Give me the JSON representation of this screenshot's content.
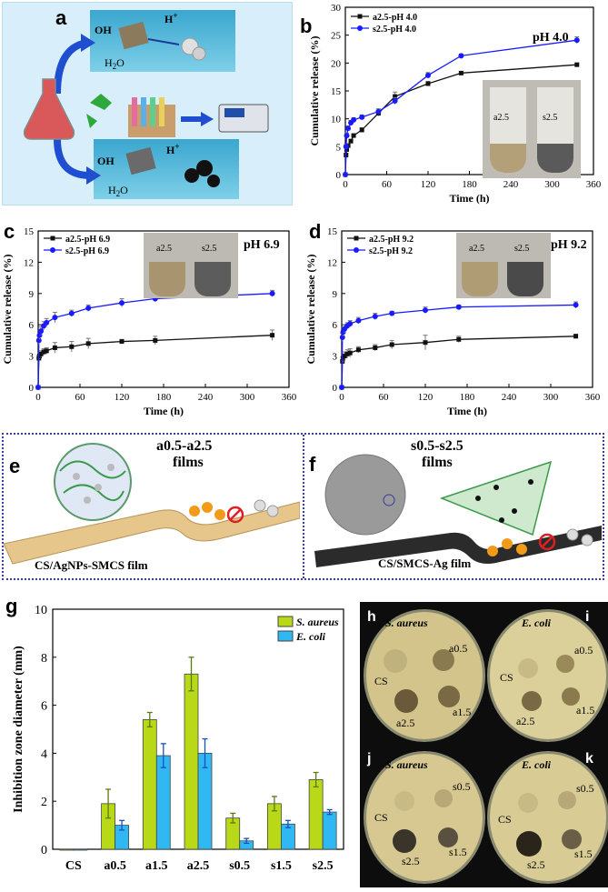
{
  "panels": {
    "a": {
      "label": "a",
      "texts": {
        "oh1": "OH",
        "h1": "H",
        "plus1": "+",
        "h2o1": "H",
        "sub1": "2",
        "o1": "O",
        "oh2": "OH",
        "h2": "H",
        "plus2": "+",
        "h2o2": "H",
        "sub2": "2",
        "o2": "O"
      }
    },
    "b": {
      "label": "b",
      "pH": "pH 4.0",
      "inset": [
        "a2.5",
        "s2.5"
      ]
    },
    "c": {
      "label": "c",
      "pH": "pH 6.9",
      "inset": [
        "a2.5",
        "s2.5"
      ]
    },
    "d": {
      "label": "d",
      "pH": "pH 9.2",
      "inset": [
        "a2.5",
        "s2.5"
      ]
    },
    "e": {
      "label": "e",
      "title_line1": "a0.5-a2.5",
      "title_line2": "films",
      "film": "CS/AgNPs-SMCS film"
    },
    "f": {
      "label": "f",
      "title_line1": "s0.5-s2.5",
      "title_line2": "films",
      "film": "CS/SMCS-Ag film"
    },
    "g": {
      "label": "g"
    },
    "h": {
      "label": "h",
      "organism": "S. aureus",
      "spots": [
        "CS",
        "a0.5",
        "a2.5",
        "a1.5"
      ]
    },
    "i": {
      "label": "i",
      "organism": "E. coli",
      "spots": [
        "CS",
        "a0.5",
        "a2.5",
        "a1.5"
      ]
    },
    "j": {
      "label": "j",
      "organism": "S. aureus",
      "spots": [
        "CS",
        "s0.5",
        "s2.5",
        "s1.5"
      ]
    },
    "k": {
      "label": "k",
      "organism": "E. coli",
      "spots": [
        "CS",
        "s0.5",
        "s2.5",
        "s1.5"
      ]
    }
  },
  "chart_data": [
    {
      "id": "b",
      "type": "line",
      "xlabel": "Time (h)",
      "ylabel": "Cumulative release (%)",
      "xlim": [
        0,
        360
      ],
      "ylim": [
        0,
        30
      ],
      "xticks": [
        0,
        60,
        120,
        180,
        240,
        300,
        360
      ],
      "yticks": [
        0,
        5,
        10,
        15,
        20,
        25,
        30
      ],
      "x": [
        0,
        1,
        2,
        4,
        8,
        12,
        24,
        48,
        72,
        120,
        168,
        336
      ],
      "series": [
        {
          "name": "a2.5-pH 4.0",
          "color": "#111111",
          "marker": "square",
          "values": [
            0,
            3.5,
            4.5,
            5.2,
            6,
            7,
            8,
            11,
            14,
            16.3,
            18.2,
            19.7
          ],
          "err": [
            0,
            0.3,
            0.3,
            0.3,
            0.3,
            0.3,
            0.4,
            0.5,
            0.8,
            0.4,
            0.3,
            0.3
          ]
        },
        {
          "name": "s2.5-pH 4.0",
          "color": "#1a1aff",
          "marker": "circle",
          "values": [
            0,
            5,
            7,
            8.3,
            9.3,
            9.8,
            10.3,
            11.3,
            13.2,
            17.8,
            21.3,
            24.1
          ],
          "err": [
            0,
            0.4,
            0.4,
            0.4,
            0.4,
            0.4,
            0.4,
            0.5,
            0.6,
            0.5,
            0.3,
            0.6
          ]
        }
      ]
    },
    {
      "id": "c",
      "type": "line",
      "xlabel": "Time (h)",
      "ylabel": "Cumulative release (%)",
      "xlim": [
        0,
        360
      ],
      "ylim": [
        0,
        15
      ],
      "xticks": [
        0,
        60,
        120,
        180,
        240,
        300,
        360
      ],
      "yticks": [
        0,
        3,
        6,
        9,
        12,
        15
      ],
      "x": [
        0,
        1,
        2,
        4,
        8,
        12,
        24,
        48,
        72,
        120,
        168,
        336
      ],
      "series": [
        {
          "name": "a2.5-pH 6.9",
          "color": "#111111",
          "marker": "square",
          "values": [
            0,
            2.8,
            3,
            3.2,
            3.4,
            3.5,
            3.8,
            3.9,
            4.2,
            4.4,
            4.5,
            5
          ],
          "err": [
            0,
            0.3,
            0.3,
            0.3,
            0.3,
            0.3,
            0.5,
            0.5,
            0.5,
            0.2,
            0.4,
            0.5
          ]
        },
        {
          "name": "s2.5-pH 6.9",
          "color": "#1a1aff",
          "marker": "circle",
          "values": [
            0,
            4.5,
            5,
            5.4,
            5.9,
            6.2,
            6.7,
            7.1,
            7.6,
            8.1,
            8.5,
            9
          ],
          "err": [
            0,
            0.4,
            0.4,
            0.4,
            0.4,
            0.4,
            0.5,
            0.3,
            0.3,
            0.4,
            0.3,
            0.3
          ]
        }
      ]
    },
    {
      "id": "d",
      "type": "line",
      "xlabel": "Time (h)",
      "ylabel": "Cumulative release (%)",
      "xlim": [
        0,
        360
      ],
      "ylim": [
        0,
        15
      ],
      "xticks": [
        0,
        60,
        120,
        180,
        240,
        300,
        360
      ],
      "yticks": [
        0,
        3,
        6,
        9,
        12,
        15
      ],
      "x": [
        0,
        1,
        2,
        4,
        8,
        12,
        24,
        48,
        72,
        120,
        168,
        336
      ],
      "series": [
        {
          "name": "a2.5-pH 9.2",
          "color": "#111111",
          "marker": "square",
          "values": [
            0,
            2.5,
            2.8,
            3,
            3.2,
            3.3,
            3.6,
            3.8,
            4.1,
            4.3,
            4.6,
            4.9
          ],
          "err": [
            0,
            0.4,
            0.4,
            0.4,
            0.4,
            0.4,
            0.3,
            0.3,
            0.4,
            0.7,
            0.3,
            0.2
          ]
        },
        {
          "name": "s2.5-pH 9.2",
          "color": "#1a1aff",
          "marker": "circle",
          "values": [
            0,
            4.8,
            5.3,
            5.6,
            5.9,
            6.1,
            6.4,
            6.8,
            7.1,
            7.4,
            7.7,
            7.9
          ],
          "err": [
            0,
            0.4,
            0.4,
            0.4,
            0.3,
            0.3,
            0.3,
            0.3,
            0.2,
            0.3,
            0.2,
            0.3
          ]
        }
      ]
    },
    {
      "id": "g",
      "type": "bar",
      "xlabel": "",
      "ylabel": "Inhibition zone diameter (mm)",
      "ylim": [
        0,
        10
      ],
      "yticks": [
        0,
        2,
        4,
        6,
        8,
        10
      ],
      "categories": [
        "CS",
        "a0.5",
        "a1.5",
        "a2.5",
        "s0.5",
        "s1.5",
        "s2.5"
      ],
      "series": [
        {
          "name": "S. aureus",
          "color": "#b8d818",
          "values": [
            0,
            1.9,
            5.4,
            7.3,
            1.3,
            1.9,
            2.9
          ],
          "err": [
            0,
            0.6,
            0.3,
            0.7,
            0.2,
            0.3,
            0.3
          ]
        },
        {
          "name": "E. coli",
          "color": "#2fb8f2",
          "values": [
            0,
            1,
            3.9,
            4,
            0.35,
            1.05,
            1.55
          ],
          "err": [
            0,
            0.2,
            0.5,
            0.6,
            0.1,
            0.15,
            0.1
          ]
        }
      ]
    }
  ]
}
